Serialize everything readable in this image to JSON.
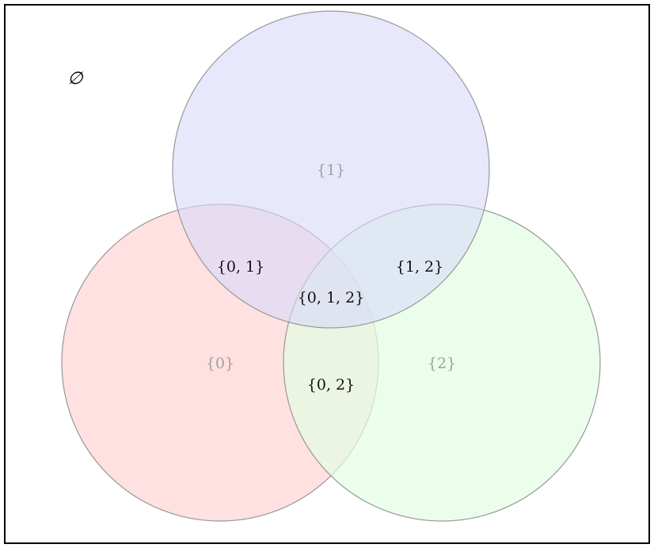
{
  "diagram": {
    "empty_set": "∅",
    "sets": [
      {
        "key": "set-0",
        "label": "{0}",
        "fill": "#ffdcdc",
        "stroke": "#999999"
      },
      {
        "key": "set-1",
        "label": "{1}",
        "fill": "#e2e2fb",
        "stroke": "#999999"
      },
      {
        "key": "set-2",
        "label": "{2}",
        "fill": "#e2fde2",
        "stroke": "#999999"
      }
    ],
    "intersections": {
      "i01": "{0, 1}",
      "i12": "{1, 2}",
      "i02": "{0, 2}",
      "i012": "{0, 1, 2}"
    },
    "colors": {
      "single_label": "#a0a0a0",
      "intersection_label": "#111111",
      "border": "#000000"
    }
  }
}
